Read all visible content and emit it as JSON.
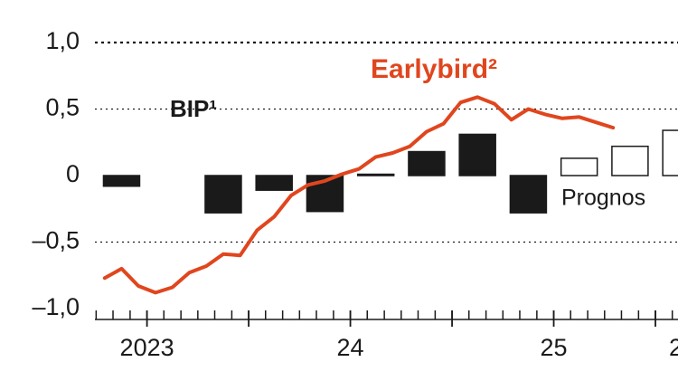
{
  "chart_data": {
    "type": "combo",
    "ylim": [
      -1.0,
      1.0
    ],
    "yticks": [
      {
        "value": 1.0,
        "label": "1,0"
      },
      {
        "value": 0.5,
        "label": "0,5"
      },
      0,
      {
        "value": -0.5,
        "label": "–0,5"
      },
      {
        "value": -1.0,
        "label": "–1,0"
      }
    ],
    "grid": true,
    "xlim": [
      2023.244,
      2026.111
    ],
    "xticks": [
      {
        "value": 2023.5,
        "label": "2023"
      },
      {
        "value": 2024.5,
        "label": "24"
      },
      {
        "value": 2025.5,
        "label": "25"
      },
      {
        "value": 2026.1,
        "label": "2"
      }
    ],
    "xminorticks": [
      2023.25,
      2023.333,
      2023.417,
      2023.5,
      2023.583,
      2023.667,
      2023.75,
      2023.833,
      2023.917,
      2024.0,
      2024.083,
      2024.167,
      2024.25,
      2024.333,
      2024.417,
      2024.5,
      2024.583,
      2024.667,
      2024.75,
      2024.833,
      2024.917,
      2025.0,
      2025.083,
      2025.167,
      2025.25,
      2025.333,
      2025.417,
      2025.5,
      2025.583,
      2025.667,
      2025.75,
      2025.833,
      2025.917,
      2026.0,
      2026.083
    ],
    "xmajorticks": [
      2023.5,
      2024.0,
      2024.5,
      2025.0,
      2025.5,
      2026.0
    ],
    "series": [
      {
        "name": "BIP¹",
        "type": "bar",
        "color": "#1a1a1a",
        "x": [
          2023.375,
          2023.875,
          2024.125,
          2024.375,
          2024.625,
          2024.875,
          2025.125,
          2025.375
        ],
        "values": [
          -0.08,
          -0.28,
          -0.11,
          -0.27,
          0.01,
          0.18,
          0.31,
          -0.28
        ]
      },
      {
        "name": "Prognos",
        "type": "bar",
        "color": "#ffffff",
        "x": [
          2025.625,
          2025.875,
          2026.125
        ],
        "values": [
          0.13,
          0.22,
          0.34
        ]
      },
      {
        "name": "Earlybird²",
        "type": "line",
        "color": "#e0461e",
        "x": [
          2023.292,
          2023.375,
          2023.458,
          2023.542,
          2023.625,
          2023.708,
          2023.792,
          2023.875,
          2023.958,
          2024.042,
          2024.125,
          2024.208,
          2024.292,
          2024.375,
          2024.458,
          2024.542,
          2024.625,
          2024.708,
          2024.792,
          2024.875,
          2024.958,
          2025.042,
          2025.125,
          2025.208,
          2025.292,
          2025.375,
          2025.458,
          2025.542,
          2025.625,
          2025.708,
          2025.792
        ],
        "values": [
          -0.77,
          -0.7,
          -0.83,
          -0.88,
          -0.84,
          -0.73,
          -0.68,
          -0.59,
          -0.6,
          -0.41,
          -0.31,
          -0.15,
          -0.07,
          -0.04,
          0.01,
          0.05,
          0.14,
          0.17,
          0.22,
          0.33,
          0.39,
          0.55,
          0.59,
          0.54,
          0.42,
          0.5,
          0.46,
          0.43,
          0.44,
          0.4,
          0.36
        ]
      }
    ]
  }
}
